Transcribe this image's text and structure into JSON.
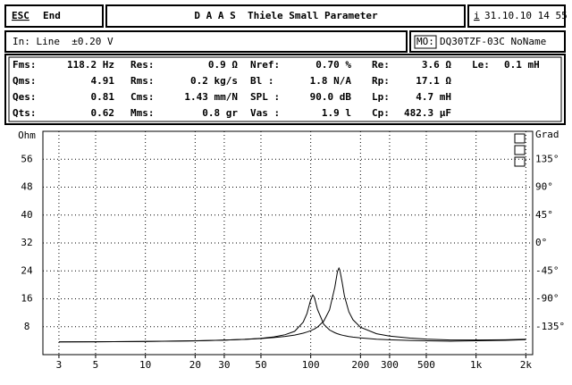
{
  "header": {
    "key": "ESC",
    "action": "End",
    "title": "D A A S  Thiele Small Parameter",
    "info": "i",
    "datetime": "31.10.10 14 55"
  },
  "input": {
    "text": "In: Line  ±0.20 V",
    "model_label": "MO:",
    "model": "DQ30TZF-03C NoName"
  },
  "parameters": [
    [
      {
        "label": "Fms:",
        "value": "118.2 Hz"
      },
      {
        "label": "Res:",
        "value": "0.9 Ω"
      },
      {
        "label": "Nref:",
        "value": "0.70 %"
      },
      {
        "label": "Re:",
        "value": "3.6 Ω"
      },
      {
        "label": "Le:",
        "value": "0.1 mH"
      }
    ],
    [
      {
        "label": "Qms:",
        "value": "4.91"
      },
      {
        "label": "Rms:",
        "value": "0.2 kg/s"
      },
      {
        "label": "Bl  :",
        "value": "1.8 N/A"
      },
      {
        "label": "Rp:",
        "value": "17.1 Ω"
      }
    ],
    [
      {
        "label": "Qes:",
        "value": "0.81"
      },
      {
        "label": "Cms:",
        "value": "1.43 mm/N"
      },
      {
        "label": "SPL :",
        "value": "90.0 dB"
      },
      {
        "label": "Lp:",
        "value": "4.7 mH"
      }
    ],
    [
      {
        "label": "Qts:",
        "value": "0.62"
      },
      {
        "label": "Mms:",
        "value": "0.8 gr"
      },
      {
        "label": "Vas :",
        "value": "1.9 l"
      },
      {
        "label": "Cp:",
        "value": "482.3 µF"
      }
    ]
  ],
  "chart": {
    "type": "line",
    "log_x": true,
    "grid": true,
    "x": [
      3,
      5,
      10,
      20,
      30,
      40,
      50,
      60,
      70,
      80,
      90,
      95,
      100,
      103,
      105,
      110,
      120,
      130,
      140,
      145,
      148,
      150,
      155,
      160,
      170,
      180,
      200,
      250,
      300,
      400,
      500,
      700,
      1000,
      1500,
      2000
    ],
    "series": [
      {
        "color": "#000000",
        "values": [
          3.65,
          3.68,
          3.76,
          3.94,
          4.14,
          4.37,
          4.68,
          5.09,
          5.72,
          6.69,
          9.3,
          11.8,
          15.8,
          17.1,
          16.5,
          12.9,
          8.67,
          7.07,
          6.26,
          5.99,
          5.85,
          5.76,
          5.59,
          5.44,
          5.2,
          5.03,
          4.78,
          4.44,
          4.25,
          4.07,
          3.96,
          3.85,
          3.97,
          4.1,
          4.3
        ]
      },
      {
        "color": "#000000",
        "values": [
          3.65,
          3.69,
          3.78,
          3.96,
          4.16,
          4.37,
          4.61,
          4.88,
          5.21,
          5.61,
          6.14,
          6.47,
          6.87,
          7.13,
          7.33,
          7.91,
          9.63,
          12.8,
          19.4,
          23.7,
          24.8,
          24.3,
          20.6,
          16.8,
          12.3,
          10.0,
          7.85,
          6.0,
          5.32,
          4.73,
          4.46,
          4.19,
          4.2,
          4.26,
          4.4
        ]
      }
    ],
    "xlim": [
      2.4,
      2200
    ],
    "xticks": [
      3,
      5,
      10,
      20,
      30,
      50,
      100,
      200,
      300,
      500,
      {
        "value": 1000,
        "label": "1k"
      },
      {
        "value": 2000,
        "label": "2k"
      }
    ],
    "ylim": [
      0,
      64
    ],
    "yticks": [
      8,
      16,
      24,
      32,
      40,
      48,
      56,
      {
        "value": 64,
        "label": "Ohm"
      }
    ],
    "y2lim": [
      -180,
      180
    ],
    "y2ticks": [
      {
        "value": -135,
        "label": "-135°"
      },
      {
        "value": -90,
        "label": "-90°"
      },
      {
        "value": -45,
        "label": "-45°"
      },
      {
        "value": 0,
        "label": "0°"
      },
      {
        "value": 45,
        "label": "45°"
      },
      {
        "value": 90,
        "label": "90°"
      },
      {
        "value": 135,
        "label": "135°"
      },
      {
        "value": 180,
        "label": "Grad"
      }
    ]
  }
}
